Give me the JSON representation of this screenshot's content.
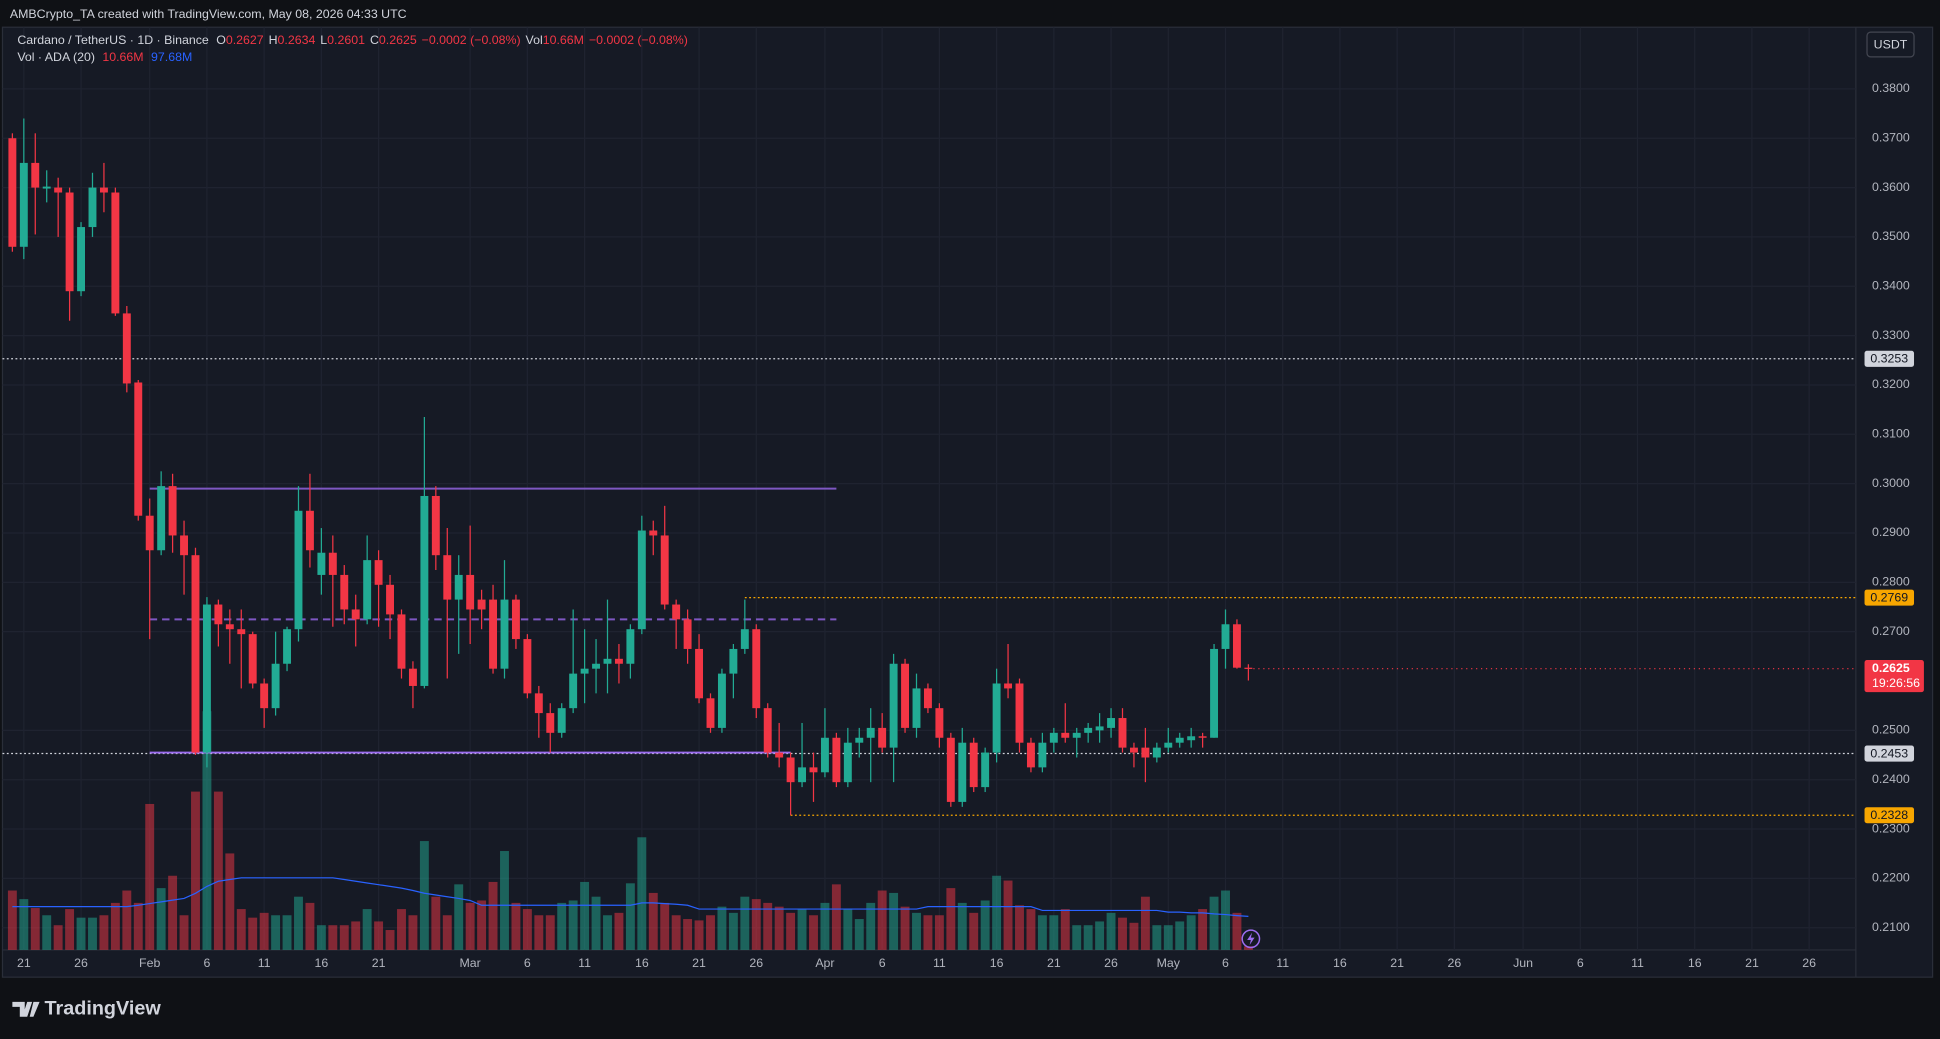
{
  "header": {
    "credit": "AMBCrypto_TA created with TradingView.com, May 08, 2026 04:33 UTC",
    "currency": "USDT",
    "brand": "TradingView"
  },
  "chart_data": {
    "type": "candlestick",
    "legend": {
      "symbol": "Cardano / TetherUS · 1D · Binance",
      "letters": [
        "O",
        "H",
        "L",
        "C"
      ],
      "change": "−0.0002 (−0.08%)",
      "vol_label": "Vol",
      "vol_text": "10.66M",
      "indicator": "Vol · ADA (20)",
      "indicator_values": [
        "10.66M",
        "97.68M"
      ]
    },
    "countdown": "19:26:56",
    "up_color": "#22ab94",
    "down_color": "#f23645",
    "ma_color": "#2962ff",
    "xlim": [
      -0.865,
      161.08
    ],
    "ylim": [
      0.2055,
      0.3925
    ],
    "yticks": [
      {
        "value": 0.38,
        "label": "0.3800"
      },
      {
        "value": 0.37,
        "label": "0.3700"
      },
      {
        "value": 0.36,
        "label": "0.3600"
      },
      {
        "value": 0.35,
        "label": "0.3500"
      },
      {
        "value": 0.34,
        "label": "0.3400"
      },
      {
        "value": 0.33,
        "label": "0.3300"
      },
      {
        "value": 0.32,
        "label": "0.3200"
      },
      {
        "value": 0.31,
        "label": "0.3100"
      },
      {
        "value": 0.3,
        "label": "0.3000"
      },
      {
        "value": 0.29,
        "label": "0.2900"
      },
      {
        "value": 0.28,
        "label": "0.2800"
      },
      {
        "value": 0.27,
        "label": "0.2700"
      },
      {
        "value": 0.25,
        "label": "0.2500"
      },
      {
        "value": 0.24,
        "label": "0.2400"
      },
      {
        "value": 0.23,
        "label": "0.2300"
      },
      {
        "value": 0.22,
        "label": "0.2200"
      },
      {
        "value": 0.21,
        "label": "0.2100"
      }
    ],
    "xticks": [
      {
        "value": 1,
        "label": "21"
      },
      {
        "value": 6,
        "label": "26"
      },
      {
        "value": 12,
        "label": "Feb"
      },
      {
        "value": 17,
        "label": "6"
      },
      {
        "value": 22,
        "label": "11"
      },
      {
        "value": 27,
        "label": "16"
      },
      {
        "value": 32,
        "label": "21"
      },
      {
        "value": 40,
        "label": "Mar"
      },
      {
        "value": 45,
        "label": "6"
      },
      {
        "value": 50,
        "label": "11"
      },
      {
        "value": 55,
        "label": "16"
      },
      {
        "value": 60,
        "label": "21"
      },
      {
        "value": 65,
        "label": "26"
      },
      {
        "value": 71,
        "label": "Apr"
      },
      {
        "value": 76,
        "label": "6"
      },
      {
        "value": 81,
        "label": "11"
      },
      {
        "value": 86,
        "label": "16"
      },
      {
        "value": 91,
        "label": "21"
      },
      {
        "value": 96,
        "label": "26"
      },
      {
        "value": 101,
        "label": "May"
      },
      {
        "value": 106,
        "label": "6"
      },
      {
        "value": 111,
        "label": "11"
      },
      {
        "value": 116,
        "label": "16"
      },
      {
        "value": 121,
        "label": "21"
      },
      {
        "value": 126,
        "label": "26"
      },
      {
        "value": 132,
        "label": "Jun"
      },
      {
        "value": 137,
        "label": "6"
      },
      {
        "value": 142,
        "label": "11"
      },
      {
        "value": 147,
        "label": "16"
      },
      {
        "value": 152,
        "label": "21"
      },
      {
        "value": 157,
        "label": "26"
      }
    ],
    "open": [
      0.37,
      0.348,
      0.365,
      0.3598,
      0.36,
      0.359,
      0.339,
      0.352,
      0.36,
      0.359,
      0.3345,
      0.3205,
      0.2935,
      0.2865,
      0.2995,
      0.2895,
      0.2855,
      0.2455,
      0.2755,
      0.2715,
      0.2705,
      0.2695,
      0.2595,
      0.2545,
      0.2635,
      0.2705,
      0.2945,
      0.2815,
      0.286,
      0.2815,
      0.2745,
      0.2725,
      0.2845,
      0.2795,
      0.2735,
      0.2625,
      0.259,
      0.2975,
      0.2855,
      0.2765,
      0.2815,
      0.2765,
      0.2765,
      0.2625,
      0.2765,
      0.2685,
      0.2575,
      0.2535,
      0.2495,
      0.2545,
      0.2615,
      0.2625,
      0.2635,
      0.2645,
      0.2635,
      0.2705,
      0.2905,
      0.2895,
      0.2755,
      0.2725,
      0.2665,
      0.2565,
      0.2505,
      0.2615,
      0.2665,
      0.2705,
      0.2545,
      0.2455,
      0.2445,
      0.2395,
      0.2425,
      0.2415,
      0.2485,
      0.2395,
      0.2475,
      0.2485,
      0.2505,
      0.2465,
      0.2635,
      0.2505,
      0.2585,
      0.2545,
      0.2485,
      0.2355,
      0.2475,
      0.2385,
      0.2455,
      0.2595,
      0.2595,
      0.2475,
      0.2425,
      0.2475,
      0.2495,
      0.2485,
      0.2495,
      0.25,
      0.2505,
      0.2525,
      0.2465,
      0.2465,
      0.2445,
      0.2465,
      0.2475,
      0.248,
      0.2488,
      0.2485,
      0.2665,
      0.2715,
      0.2627
    ],
    "high": [
      0.371,
      0.374,
      0.371,
      0.3635,
      0.362,
      0.36,
      0.353,
      0.363,
      0.365,
      0.36,
      0.336,
      0.321,
      0.297,
      0.3025,
      0.302,
      0.2925,
      0.287,
      0.277,
      0.2765,
      0.2745,
      0.2745,
      0.27,
      0.2605,
      0.27,
      0.271,
      0.2995,
      0.302,
      0.291,
      0.2895,
      0.2835,
      0.2775,
      0.2895,
      0.2865,
      0.2815,
      0.2745,
      0.264,
      0.3135,
      0.2995,
      0.291,
      0.2855,
      0.2915,
      0.2785,
      0.2795,
      0.2845,
      0.2775,
      0.2695,
      0.259,
      0.2555,
      0.2555,
      0.2745,
      0.2705,
      0.2685,
      0.2765,
      0.2675,
      0.2715,
      0.2935,
      0.2925,
      0.2955,
      0.2765,
      0.2745,
      0.2695,
      0.2575,
      0.2625,
      0.2675,
      0.2765,
      0.2715,
      0.2555,
      0.2515,
      0.2455,
      0.2515,
      0.2455,
      0.2545,
      0.2495,
      0.2505,
      0.2505,
      0.2545,
      0.2535,
      0.2655,
      0.2645,
      0.2615,
      0.2595,
      0.2555,
      0.2495,
      0.2505,
      0.2485,
      0.2465,
      0.2625,
      0.2675,
      0.2605,
      0.2485,
      0.2495,
      0.2505,
      0.2555,
      0.2505,
      0.2515,
      0.2535,
      0.2545,
      0.2545,
      0.2475,
      0.2505,
      0.2475,
      0.2505,
      0.2495,
      0.2505,
      0.2495,
      0.2675,
      0.2745,
      0.2725,
      0.2634
    ],
    "low": [
      0.347,
      0.3455,
      0.3505,
      0.357,
      0.35,
      0.333,
      0.338,
      0.35,
      0.355,
      0.334,
      0.3185,
      0.2925,
      0.2685,
      0.2855,
      0.286,
      0.2775,
      0.245,
      0.2425,
      0.267,
      0.2635,
      0.2585,
      0.2585,
      0.2505,
      0.253,
      0.262,
      0.268,
      0.283,
      0.2775,
      0.271,
      0.2715,
      0.267,
      0.2715,
      0.271,
      0.2685,
      0.2605,
      0.2545,
      0.2585,
      0.2825,
      0.2605,
      0.2655,
      0.2675,
      0.2705,
      0.2615,
      0.2605,
      0.2665,
      0.2565,
      0.2485,
      0.2455,
      0.2485,
      0.2535,
      0.2555,
      0.2575,
      0.2575,
      0.2595,
      0.2605,
      0.2695,
      0.2855,
      0.2745,
      0.2665,
      0.2635,
      0.2555,
      0.2495,
      0.2495,
      0.2565,
      0.2655,
      0.2525,
      0.2445,
      0.2425,
      0.2328,
      0.2385,
      0.2355,
      0.2405,
      0.2385,
      0.2385,
      0.2445,
      0.2395,
      0.2455,
      0.2395,
      0.2495,
      0.2485,
      0.2535,
      0.2465,
      0.2345,
      0.2345,
      0.2375,
      0.2375,
      0.2435,
      0.2565,
      0.2455,
      0.2415,
      0.2415,
      0.2455,
      0.2475,
      0.2445,
      0.2475,
      0.2475,
      0.2485,
      0.2455,
      0.2425,
      0.2395,
      0.2435,
      0.2455,
      0.2465,
      0.2465,
      0.2465,
      0.2485,
      0.2625,
      0.2625,
      0.2601
    ],
    "close": [
      0.348,
      0.365,
      0.36,
      0.3602,
      0.359,
      0.339,
      0.352,
      0.36,
      0.359,
      0.3345,
      0.3203,
      0.2935,
      0.2865,
      0.2995,
      0.2895,
      0.2855,
      0.2455,
      0.2755,
      0.2715,
      0.2705,
      0.2695,
      0.2595,
      0.2545,
      0.2635,
      0.2705,
      0.2945,
      0.2865,
      0.286,
      0.2815,
      0.2745,
      0.2725,
      0.2845,
      0.2795,
      0.2735,
      0.2625,
      0.259,
      0.2975,
      0.2855,
      0.2765,
      0.2815,
      0.2745,
      0.2745,
      0.2625,
      0.2765,
      0.2685,
      0.2575,
      0.2535,
      0.2495,
      0.2545,
      0.2615,
      0.2625,
      0.2635,
      0.2645,
      0.2635,
      0.2705,
      0.2905,
      0.2895,
      0.2755,
      0.2725,
      0.2665,
      0.2565,
      0.2505,
      0.2615,
      0.2665,
      0.2705,
      0.2545,
      0.2455,
      0.2445,
      0.2395,
      0.2425,
      0.2415,
      0.2485,
      0.2395,
      0.2475,
      0.2485,
      0.2505,
      0.2465,
      0.2635,
      0.2505,
      0.2585,
      0.2545,
      0.2485,
      0.2355,
      0.2475,
      0.2385,
      0.2455,
      0.2595,
      0.2585,
      0.2475,
      0.2425,
      0.2475,
      0.2495,
      0.2485,
      0.2495,
      0.2505,
      0.2508,
      0.2525,
      0.2465,
      0.2455,
      0.2445,
      0.2465,
      0.2475,
      0.2485,
      0.2488,
      0.2485,
      0.2665,
      0.2715,
      0.2627,
      0.2625
    ],
    "volume": [
      173,
      148,
      122,
      101,
      72,
      119,
      94,
      94,
      101,
      137,
      173,
      137,
      425,
      180,
      216,
      101,
      461,
      695,
      461,
      281,
      119,
      94,
      108,
      101,
      101,
      155,
      137,
      72,
      72,
      72,
      83,
      119,
      83,
      58,
      119,
      101,
      317,
      155,
      101,
      191,
      137,
      144,
      198,
      288,
      137,
      119,
      101,
      101,
      137,
      144,
      198,
      155,
      101,
      108,
      194,
      328,
      166,
      137,
      101,
      90,
      86,
      101,
      126,
      108,
      155,
      148,
      137,
      126,
      108,
      119,
      101,
      137,
      191,
      119,
      90,
      137,
      173,
      166,
      126,
      108,
      101,
      101,
      180,
      137,
      108,
      144,
      216,
      202,
      130,
      119,
      101,
      101,
      119,
      72,
      72,
      83,
      108,
      94,
      79,
      155,
      72,
      72,
      83,
      101,
      119,
      155,
      173,
      108,
      10.66
    ],
    "volume_ma": [
      126,
      126,
      126,
      126,
      126,
      126,
      126,
      126,
      126,
      126,
      126,
      130,
      135,
      140,
      145,
      150,
      165,
      185,
      200,
      205,
      210,
      210,
      210,
      210,
      210,
      210,
      210,
      210,
      210,
      205,
      200,
      195,
      190,
      185,
      180,
      173,
      165,
      160,
      155,
      150,
      144,
      130,
      130,
      130,
      130,
      130,
      130,
      130,
      130,
      130,
      130,
      130,
      130,
      130,
      130,
      137,
      137,
      135,
      133,
      130,
      119,
      119,
      119,
      119,
      119,
      119,
      119,
      119,
      119,
      119,
      119,
      119,
      119,
      119,
      119,
      119,
      119,
      119,
      119,
      119,
      126,
      126,
      126,
      126,
      126,
      126,
      126,
      126,
      126,
      126,
      115,
      115,
      115,
      115,
      115,
      115,
      115,
      115,
      115,
      115,
      115,
      110,
      110,
      108,
      108,
      105,
      103,
      100,
      97.68
    ],
    "levels": [
      {
        "price": 0.3253,
        "color": "#d1d4dc",
        "from": -0.865
      },
      {
        "price": 0.2769,
        "color": "#f7a600",
        "from": 64
      },
      {
        "price": 0.2453,
        "color": "#d1d4dc",
        "from": -0.865
      },
      {
        "price": 0.2328,
        "color": "#f7a600",
        "from": 68
      }
    ],
    "drawings": [
      {
        "price": 0.299,
        "from": 12,
        "to": 72,
        "dashed": false,
        "color": "#7e57c2"
      },
      {
        "price": 0.2725,
        "from": 12,
        "to": 72,
        "dashed": true,
        "color": "#7e57c2"
      },
      {
        "price": 0.2455,
        "from": 12,
        "to": 68,
        "dashed": false,
        "color": "#9c6cf0"
      }
    ]
  }
}
